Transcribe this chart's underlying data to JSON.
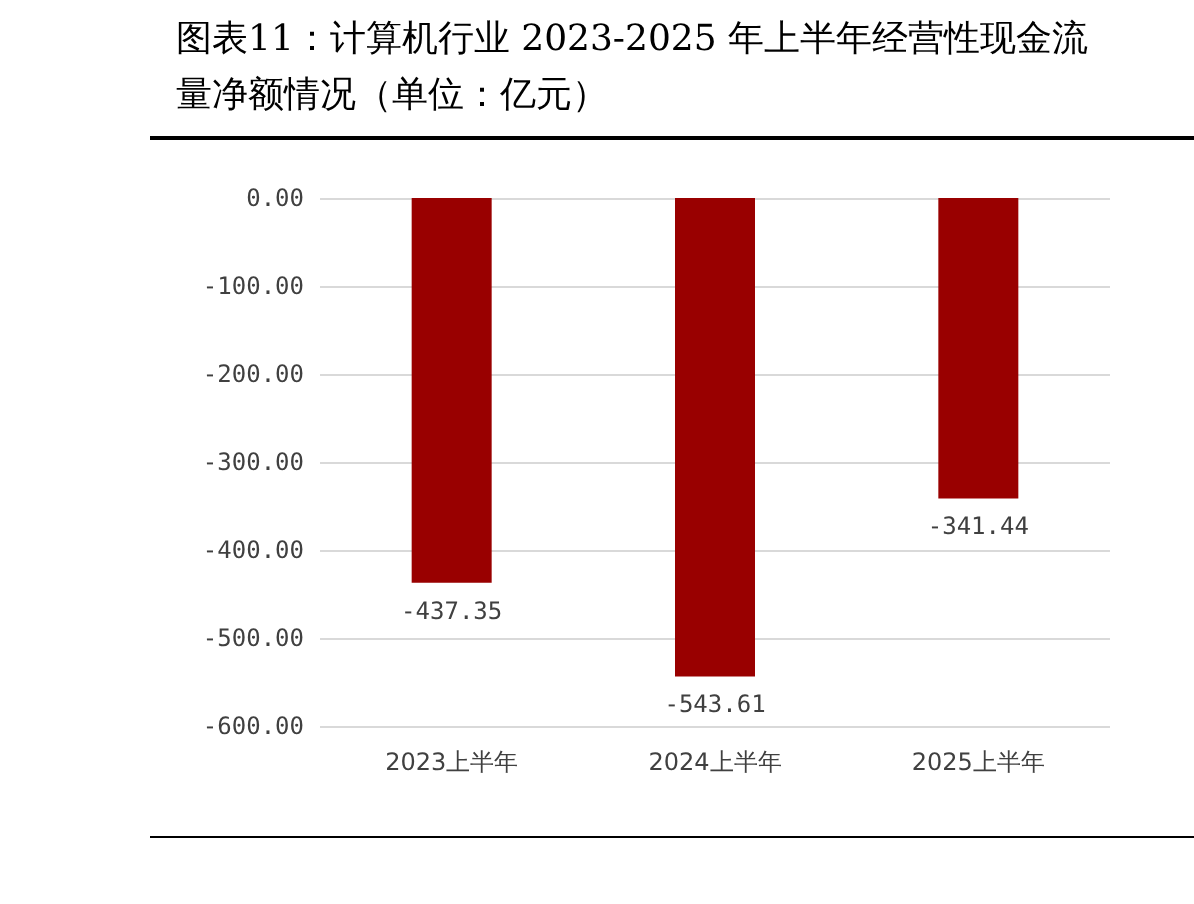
{
  "chart_data": {
    "type": "bar",
    "title": "图表11：计算机行业 2023-2025 年上半年经营性现金流量净额情况（单位：亿元）",
    "categories": [
      "2023上半年",
      "2024上半年",
      "2025上半年"
    ],
    "values": [
      -437.35,
      -543.61,
      -341.44
    ],
    "color": "#990000",
    "ylim": [
      -600,
      0
    ],
    "yticks": [
      {
        "value": 0,
        "label": "0.00"
      },
      {
        "value": -100,
        "label": "-100.00"
      },
      {
        "value": -200,
        "label": "-200.00"
      },
      {
        "value": -300,
        "label": "-300.00"
      },
      {
        "value": -400,
        "label": "-400.00"
      },
      {
        "value": -500,
        "label": "-500.00"
      },
      {
        "value": -600,
        "label": "-600.00"
      }
    ],
    "grid": "y",
    "data_labels": true
  }
}
